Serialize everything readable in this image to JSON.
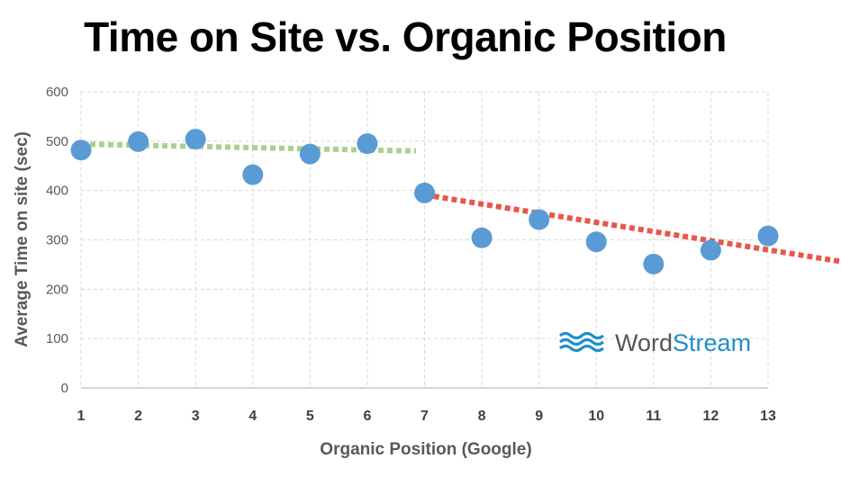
{
  "chart_data": {
    "type": "scatter",
    "title": "Time on Site vs. Organic Position",
    "xlabel": "Organic Position (Google)",
    "ylabel": "Average Time on site (sec)",
    "xlim": [
      1,
      13
    ],
    "ylim": [
      0,
      600
    ],
    "x_ticks": [
      "1",
      "2",
      "3",
      "4",
      "5",
      "6",
      "7",
      "8",
      "9",
      "10",
      "11",
      "12",
      "13"
    ],
    "y_ticks": [
      "0",
      "100",
      "200",
      "300",
      "400",
      "500",
      "600"
    ],
    "grid": true,
    "series": [
      {
        "x": [
          1,
          2,
          3,
          4,
          5,
          6,
          7,
          8,
          9,
          10,
          11,
          12,
          13
        ],
        "y": [
          482,
          499,
          504,
          432,
          474,
          495,
          395,
          304,
          341,
          296,
          251,
          279,
          308
        ]
      }
    ],
    "trendlines": [
      {
        "x": [
          1,
          6.85
        ],
        "y": [
          494,
          480
        ],
        "color": "#a9d18e"
      },
      {
        "x": [
          6.85,
          14.6
        ],
        "y": [
          394,
          250
        ],
        "color": "#e8574a"
      }
    ],
    "colors": {
      "points": "#5b9bd5",
      "grid": "#d9d9d9"
    }
  },
  "watermark": {
    "text_part1": "Word",
    "text_part2": "Stream",
    "icon": "waves-icon",
    "color_part1": "#555555",
    "color_part2": "#1f8fc7"
  }
}
